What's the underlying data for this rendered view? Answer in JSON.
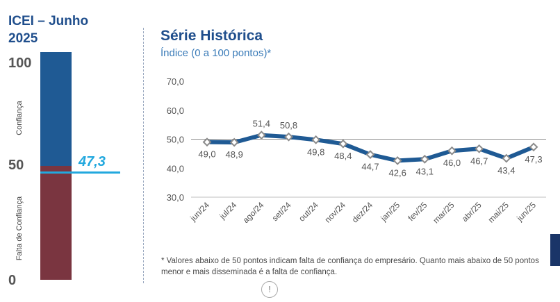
{
  "left_panel": {
    "title_line1": "ICEI – Junho",
    "title_line2": "2025",
    "gauge": {
      "max_label": "100",
      "mid_label": "50",
      "min_label": "0",
      "min": 0,
      "max": 100,
      "value": 47.3,
      "value_label": "47,3",
      "top_color": "#1f5a94",
      "bottom_color": "#7a3540",
      "marker_color": "#22a8de",
      "label_top": "Confiança",
      "label_bottom": "Falta de Confiança"
    }
  },
  "chart_data": {
    "type": "line",
    "title": "Série Histórica",
    "subtitle": "Índice (0 a 100 pontos)*",
    "categories": [
      "jun/24",
      "jul/24",
      "ago/24",
      "set/24",
      "out/24",
      "nov/24",
      "dez/24",
      "jan/25",
      "fev/25",
      "mar/25",
      "abr/25",
      "mai/25",
      "jun/25"
    ],
    "values": [
      49.0,
      48.9,
      51.4,
      50.8,
      49.8,
      48.4,
      44.7,
      42.6,
      43.1,
      46.0,
      46.7,
      43.4,
      47.3
    ],
    "value_labels": [
      "49,0",
      "48,9",
      "51,4",
      "50,8",
      "49,8",
      "48,4",
      "44,7",
      "42,6",
      "43,1",
      "46,0",
      "46,7",
      "43,4",
      "47,3"
    ],
    "label_above": [
      false,
      false,
      true,
      true,
      false,
      false,
      false,
      false,
      false,
      false,
      false,
      false,
      false
    ],
    "ylim": [
      30,
      70
    ],
    "y_ticks": [
      30,
      40,
      50,
      60,
      70
    ],
    "y_tick_labels": [
      "30,0",
      "40,0",
      "50,0",
      "60,0",
      "70,0"
    ],
    "reference_line": 50,
    "line_color": "#1f5a94",
    "marker_color": "#8a8a8a"
  },
  "footnote": "* Valores abaixo de 50 pontos indicam falta de confiança do empresário. Quanto mais abaixo de 50 pontos menor e mais disseminada é a falta de confiança.",
  "info_icon_glyph": "!"
}
